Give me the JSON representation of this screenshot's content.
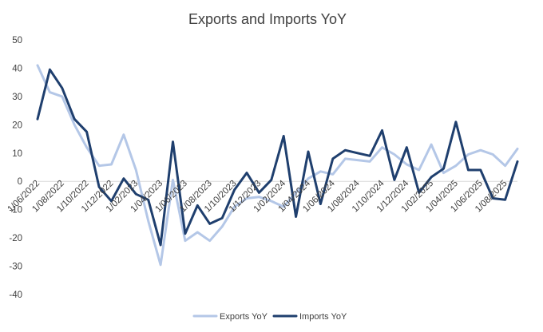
{
  "chart_data": {
    "type": "line",
    "title": "Exports and Imports YoY",
    "xlabel": "",
    "ylabel": "",
    "ylim": [
      -40,
      50
    ],
    "yticks": [
      -40,
      -30,
      -20,
      -10,
      0,
      10,
      20,
      30,
      40,
      50
    ],
    "grid": false,
    "legend_position": "bottom",
    "x": [
      "1/06/2022",
      "1/07/2022",
      "1/08/2022",
      "1/09/2022",
      "1/10/2022",
      "1/11/2022",
      "1/12/2022",
      "1/01/2023",
      "1/02/2023",
      "1/03/2023",
      "1/04/2023",
      "1/05/2023",
      "1/06/2023",
      "1/07/2023",
      "1/08/2023",
      "1/09/2023",
      "1/10/2023",
      "1/11/2023",
      "1/12/2023",
      "1/01/2024",
      "1/02/2024",
      "1/03/2024",
      "1/04/2024",
      "1/05/2024",
      "1/06/2024",
      "1/07/2024",
      "1/08/2024",
      "1/09/2024",
      "1/10/2024",
      "1/11/2024",
      "1/12/2024",
      "1/01/2025",
      "1/02/2025",
      "1/03/2025",
      "1/04/2025",
      "1/05/2025",
      "1/06/2025",
      "1/07/2025",
      "1/08/2025",
      "1/09/2025"
    ],
    "x_tick_labels": [
      "1/06/2022",
      "1/08/2022",
      "1/10/2022",
      "1/12/2022",
      "1/02/2023",
      "1/04/2023",
      "1/06/2023",
      "1/08/2023",
      "1/10/2023",
      "1/12/2023",
      "1/02/2024",
      "1/04/2024",
      "1/06/2024",
      "1/08/2024",
      "1/10/2024",
      "1/12/2024",
      "1/02/2025",
      "1/04/2025",
      "1/06/2025",
      "1/08/2025"
    ],
    "series": [
      {
        "name": "Exports YoY",
        "color": "#b4c7e7",
        "values": [
          41,
          31.5,
          30,
          20,
          12,
          5.5,
          6,
          16.5,
          4,
          -14,
          -29.5,
          0.5,
          -21,
          -18,
          -21,
          -16,
          -9,
          -6,
          -5.5,
          -7,
          -9,
          -4,
          1,
          3.5,
          2.5,
          8,
          7.5,
          7,
          12,
          9.5,
          6,
          4,
          13,
          3,
          5.5,
          9.5,
          11,
          9.5,
          5.5,
          11.5
        ]
      },
      {
        "name": "Imports YoY",
        "color": "#1f3f6e",
        "values": [
          22,
          39.5,
          33,
          22,
          17.5,
          -2,
          -7,
          1,
          -4.5,
          -6.5,
          -22.5,
          14,
          -18.5,
          -8.5,
          -15,
          -13,
          -3,
          3,
          -4,
          0.5,
          16,
          -12.5,
          10.5,
          -8,
          8,
          11,
          10,
          9,
          18,
          0.5,
          12,
          -4,
          1.5,
          4.5,
          21,
          4,
          4,
          -6,
          -6.5,
          7
        ]
      }
    ]
  }
}
